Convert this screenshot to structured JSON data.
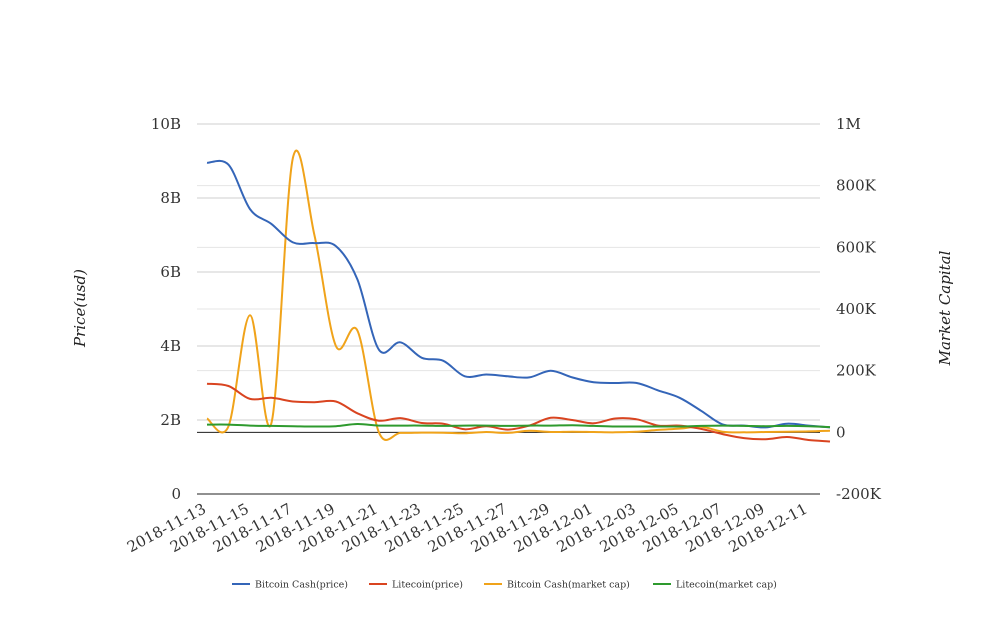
{
  "chart_data": {
    "type": "line",
    "title": "",
    "ylabel_left": "Price(usd)",
    "ylabel_right": "Market Capital",
    "ylim_left": [
      0,
      10000000000
    ],
    "ylim_right": [
      -200000,
      1000000
    ],
    "yticks_left": [
      "0",
      "2B",
      "4B",
      "6B",
      "8B",
      "10B"
    ],
    "yticks_right": [
      "-200K",
      "0",
      "200K",
      "400K",
      "600K",
      "800K",
      "1M"
    ],
    "grid": true,
    "legend_position": "bottom",
    "xlim": [
      "2018-11-13",
      "2018-12-12"
    ],
    "x_tick_labels": [
      "2018-11-13",
      "2018-11-15",
      "2018-11-17",
      "2018-11-19",
      "2018-11-21",
      "2018-11-23",
      "2018-11-25",
      "2018-11-27",
      "2018-11-29",
      "2018-12-01",
      "2018-12-03",
      "2018-12-05",
      "2018-12-07",
      "2018-12-09",
      "2018-12-11"
    ],
    "dates": [
      "2018-11-13",
      "2018-11-14",
      "2018-11-15",
      "2018-11-16",
      "2018-11-17",
      "2018-11-18",
      "2018-11-19",
      "2018-11-20",
      "2018-11-21",
      "2018-11-22",
      "2018-11-23",
      "2018-11-24",
      "2018-11-25",
      "2018-11-26",
      "2018-11-27",
      "2018-11-28",
      "2018-11-29",
      "2018-11-30",
      "2018-12-01",
      "2018-12-02",
      "2018-12-03",
      "2018-12-04",
      "2018-12-05",
      "2018-12-06",
      "2018-12-07",
      "2018-12-08",
      "2018-12-09",
      "2018-12-10",
      "2018-12-11",
      "2018-12-12"
    ],
    "series": [
      {
        "name": "Bitcoin Cash(price)",
        "axis": "left",
        "color": "#3465b8",
        "values": [
          8950000000,
          8900000000,
          7700000000,
          7300000000,
          6800000000,
          6780000000,
          6700000000,
          5800000000,
          3900000000,
          4100000000,
          3680000000,
          3600000000,
          3180000000,
          3230000000,
          3180000000,
          3150000000,
          3330000000,
          3150000000,
          3020000000,
          3000000000,
          3000000000,
          2800000000,
          2600000000,
          2250000000,
          1880000000,
          1850000000,
          1800000000,
          1900000000,
          1850000000,
          1800000000
        ]
      },
      {
        "name": "Litecoin(price)",
        "axis": "left",
        "color": "#d94420",
        "values": [
          2980000000,
          2920000000,
          2570000000,
          2600000000,
          2500000000,
          2480000000,
          2500000000,
          2180000000,
          1980000000,
          2050000000,
          1920000000,
          1900000000,
          1750000000,
          1830000000,
          1740000000,
          1850000000,
          2060000000,
          2000000000,
          1910000000,
          2040000000,
          2020000000,
          1850000000,
          1850000000,
          1760000000,
          1620000000,
          1510000000,
          1480000000,
          1540000000,
          1460000000,
          1420000000
        ]
      },
      {
        "name": "Bitcoin Cash(market cap)",
        "axis": "right",
        "color": "#f0a31a",
        "values": [
          45000,
          20000,
          380000,
          30000,
          890000,
          640000,
          280000,
          330000,
          0,
          -2000,
          -1000,
          -1500,
          -3000,
          1000,
          -2000,
          5000,
          1000,
          2000,
          1000,
          0,
          2000,
          8000,
          12000,
          18000,
          2000,
          0,
          1000,
          2000,
          3000,
          5000
        ]
      },
      {
        "name": "Litecoin(market cap)",
        "axis": "right",
        "color": "#2e9a2e",
        "values": [
          25000,
          25000,
          22000,
          21000,
          20000,
          19000,
          20000,
          27000,
          22000,
          22000,
          22000,
          21000,
          22000,
          22000,
          21000,
          22000,
          22000,
          23000,
          21000,
          19000,
          19000,
          19000,
          19000,
          21000,
          22000,
          21000,
          20000,
          21000,
          20000,
          17000
        ]
      }
    ]
  }
}
